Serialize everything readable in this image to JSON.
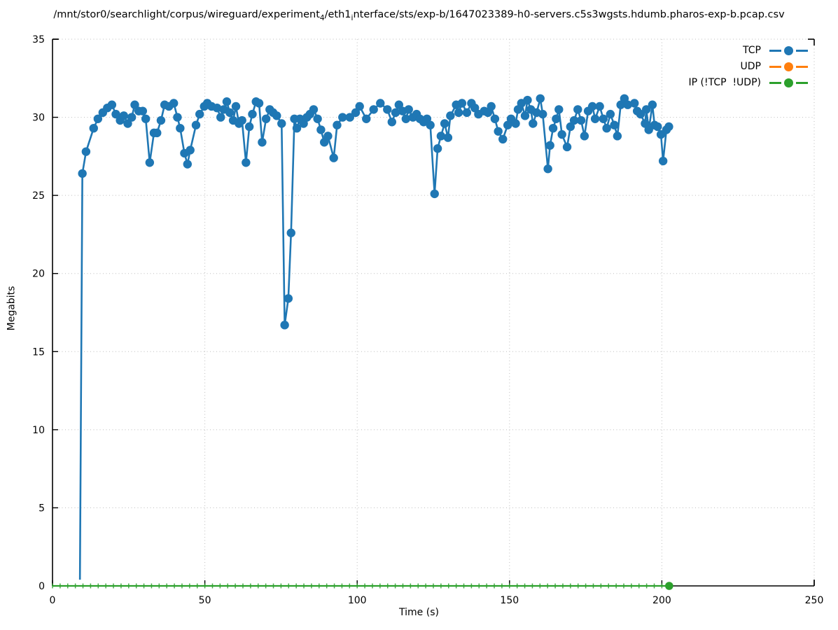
{
  "chart_data": {
    "type": "line",
    "title_segments": [
      {
        "text": "/mnt/stor0/searchlight/corpus/wireguard/experiment",
        "sub": false
      },
      {
        "text": "4",
        "sub": true
      },
      {
        "text": "/eth1",
        "sub": false
      },
      {
        "text": "i",
        "sub": true
      },
      {
        "text": "nterface/sts/exp-b/1647023389-h0-servers.c5s3wgsts.hdumb.pharos-exp-b.pcap.csv",
        "sub": false
      }
    ],
    "xlabel": "Time (s)",
    "ylabel": "Megabits",
    "xlim": [
      0,
      250
    ],
    "ylim": [
      0,
      35
    ],
    "xticks": [
      0,
      50,
      100,
      150,
      200,
      250
    ],
    "yticks": [
      0,
      5,
      10,
      15,
      20,
      25,
      30,
      35
    ],
    "grid": "dotted",
    "grid_color": "#bdbdbd",
    "axis_color": "#000000",
    "legend_position": "top-right-inside",
    "series": [
      {
        "name": "TCP",
        "color": "#1f77b4",
        "marker": "filled-circle",
        "first_point_has_marker": false,
        "points": [
          [
            9.0,
            0.4
          ],
          [
            9.8,
            26.4
          ],
          [
            11.0,
            27.8
          ],
          [
            13.5,
            29.3
          ],
          [
            14.9,
            29.9
          ],
          [
            16.5,
            30.3
          ],
          [
            18.0,
            30.6
          ],
          [
            19.5,
            30.8
          ],
          [
            20.8,
            30.2
          ],
          [
            22.2,
            29.8
          ],
          [
            23.4,
            30.1
          ],
          [
            24.7,
            29.6
          ],
          [
            26.0,
            30.0
          ],
          [
            27.0,
            30.8
          ],
          [
            28.3,
            30.4
          ],
          [
            29.6,
            30.4
          ],
          [
            30.6,
            29.9
          ],
          [
            31.9,
            27.1
          ],
          [
            33.3,
            29.0
          ],
          [
            34.3,
            29.0
          ],
          [
            35.6,
            29.8
          ],
          [
            36.8,
            30.8
          ],
          [
            38.2,
            30.7
          ],
          [
            39.8,
            30.9
          ],
          [
            41.0,
            30.0
          ],
          [
            41.9,
            29.3
          ],
          [
            43.3,
            27.7
          ],
          [
            44.3,
            27.0
          ],
          [
            45.2,
            27.9
          ],
          [
            47.1,
            29.5
          ],
          [
            48.3,
            30.2
          ],
          [
            49.8,
            30.7
          ],
          [
            50.8,
            30.9
          ],
          [
            52.2,
            30.7
          ],
          [
            54.0,
            30.6
          ],
          [
            55.2,
            30.0
          ],
          [
            56.2,
            30.5
          ],
          [
            57.2,
            31.0
          ],
          [
            58.2,
            30.3
          ],
          [
            59.3,
            29.8
          ],
          [
            60.2,
            30.7
          ],
          [
            61.2,
            29.6
          ],
          [
            62.2,
            29.8
          ],
          [
            63.5,
            27.1
          ],
          [
            64.6,
            29.4
          ],
          [
            65.6,
            30.2
          ],
          [
            66.8,
            31.0
          ],
          [
            67.8,
            30.9
          ],
          [
            68.8,
            28.4
          ],
          [
            70.1,
            29.9
          ],
          [
            71.3,
            30.5
          ],
          [
            72.4,
            30.3
          ],
          [
            73.6,
            30.1
          ],
          [
            75.2,
            29.6
          ],
          [
            76.2,
            16.7
          ],
          [
            77.4,
            18.4
          ],
          [
            78.3,
            22.6
          ],
          [
            79.4,
            29.9
          ],
          [
            80.2,
            29.3
          ],
          [
            81.2,
            29.9
          ],
          [
            82.4,
            29.6
          ],
          [
            83.5,
            30.0
          ],
          [
            84.5,
            30.2
          ],
          [
            85.7,
            30.5
          ],
          [
            87.0,
            29.9
          ],
          [
            88.1,
            29.2
          ],
          [
            89.2,
            28.4
          ],
          [
            90.4,
            28.8
          ],
          [
            92.3,
            27.4
          ],
          [
            93.4,
            29.5
          ],
          [
            95.2,
            30.0
          ],
          [
            97.6,
            30.0
          ],
          [
            99.5,
            30.3
          ],
          [
            100.8,
            30.7
          ],
          [
            103.0,
            29.9
          ],
          [
            105.4,
            30.5
          ],
          [
            107.6,
            30.9
          ],
          [
            109.9,
            30.5
          ],
          [
            111.4,
            29.7
          ],
          [
            112.6,
            30.3
          ],
          [
            113.7,
            30.8
          ],
          [
            114.9,
            30.4
          ],
          [
            116.0,
            29.9
          ],
          [
            116.9,
            30.5
          ],
          [
            118.3,
            30.0
          ],
          [
            119.5,
            30.2
          ],
          [
            120.6,
            29.9
          ],
          [
            121.8,
            29.7
          ],
          [
            122.9,
            29.9
          ],
          [
            124.0,
            29.5
          ],
          [
            125.4,
            25.1
          ],
          [
            126.4,
            28.0
          ],
          [
            127.5,
            28.8
          ],
          [
            128.7,
            29.6
          ],
          [
            129.8,
            28.7
          ],
          [
            130.6,
            30.1
          ],
          [
            132.5,
            30.8
          ],
          [
            133.3,
            30.3
          ],
          [
            134.4,
            30.9
          ],
          [
            136.0,
            30.3
          ],
          [
            137.5,
            30.9
          ],
          [
            138.6,
            30.6
          ],
          [
            139.8,
            30.2
          ],
          [
            141.7,
            30.4
          ],
          [
            142.9,
            30.3
          ],
          [
            144.0,
            30.7
          ],
          [
            145.2,
            29.9
          ],
          [
            146.3,
            29.1
          ],
          [
            147.8,
            28.6
          ],
          [
            149.4,
            29.5
          ],
          [
            150.5,
            29.9
          ],
          [
            152.0,
            29.6
          ],
          [
            152.8,
            30.5
          ],
          [
            153.9,
            30.9
          ],
          [
            155.1,
            30.1
          ],
          [
            155.9,
            31.1
          ],
          [
            157.0,
            30.5
          ],
          [
            157.7,
            29.6
          ],
          [
            158.9,
            30.3
          ],
          [
            160.1,
            31.2
          ],
          [
            160.9,
            30.2
          ],
          [
            162.6,
            26.7
          ],
          [
            163.3,
            28.2
          ],
          [
            164.3,
            29.3
          ],
          [
            165.3,
            29.9
          ],
          [
            166.2,
            30.5
          ],
          [
            167.2,
            28.9
          ],
          [
            168.9,
            28.1
          ],
          [
            170.0,
            29.4
          ],
          [
            171.2,
            29.8
          ],
          [
            172.4,
            30.5
          ],
          [
            173.5,
            29.8
          ],
          [
            174.6,
            28.8
          ],
          [
            175.8,
            30.4
          ],
          [
            177.2,
            30.7
          ],
          [
            178.1,
            29.9
          ],
          [
            179.6,
            30.7
          ],
          [
            180.8,
            29.9
          ],
          [
            181.9,
            29.3
          ],
          [
            183.1,
            30.2
          ],
          [
            184.4,
            29.5
          ],
          [
            185.4,
            28.8
          ],
          [
            186.5,
            30.8
          ],
          [
            187.7,
            31.2
          ],
          [
            188.8,
            30.8
          ],
          [
            191.0,
            30.9
          ],
          [
            191.9,
            30.4
          ],
          [
            193.0,
            30.2
          ],
          [
            194.5,
            29.6
          ],
          [
            194.9,
            30.5
          ],
          [
            195.7,
            29.2
          ],
          [
            196.9,
            30.8
          ],
          [
            197.6,
            29.5
          ],
          [
            198.6,
            29.4
          ],
          [
            199.7,
            28.9
          ],
          [
            200.4,
            27.2
          ],
          [
            201.5,
            29.2
          ],
          [
            202.3,
            29.4
          ]
        ]
      },
      {
        "name": "UDP",
        "color": "#ff7f0e",
        "marker": "filled-circle",
        "points": []
      },
      {
        "name": "IP (!TCP  !UDP)",
        "color": "#2ca02c",
        "marker": "filled-circle",
        "points": [
          [
            0,
            0
          ],
          [
            202.4,
            0
          ]
        ],
        "small_tick_markers_every_s": 2.5,
        "end_point": [
          202.4,
          0
        ]
      }
    ]
  }
}
